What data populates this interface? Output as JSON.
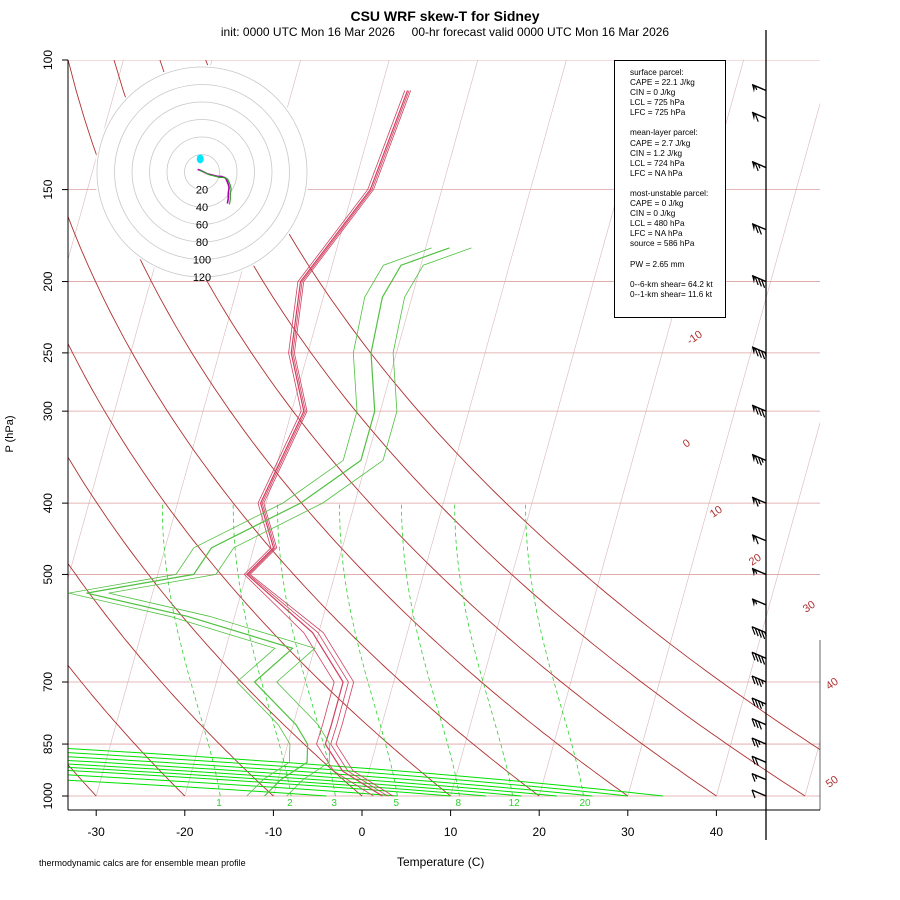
{
  "title": "CSU WRF skew-T for Sidney",
  "subtitle": "init: 0000 UTC Mon 16 Mar 2026     00-hr forecast valid 0000 UTC Mon 16 Mar 2026",
  "footnote": "thermodynamic calcs are for ensemble mean profile",
  "stats": {
    "surface": [
      "surface parcel:",
      "CAPE = 22.1  J/kg",
      "CIN = 0 J/kg",
      "LCL = 725 hPa",
      "LFC = 725 hPa"
    ],
    "mean_layer": [
      "mean-layer parcel:",
      "CAPE = 2.7 J/kg",
      "CIN = 1.2 J/kg",
      "LCL = 724 hPa",
      "LFC = NA hPa"
    ],
    "most_unstable": [
      "most-unstable parcel:",
      "CAPE = 0 J/kg",
      "CIN = 0 J/kg",
      "LCL = 480 hPa",
      "LFC = NA hPa",
      "source = 586 hPa"
    ],
    "pw": "PW =  2.65 mm",
    "shear": [
      "0--6-km shear= 64.2 kt",
      "0--1-km shear= 11.6 kt"
    ]
  },
  "colors": {
    "isotherm": "#b03030",
    "skewed_grid": "#d9b8b8",
    "isobar": "#dca0a0",
    "moist_adiabat": "#00e000",
    "mixing_ratio": "#30d030",
    "temperature": "#d04060",
    "dewpoint": "#50c040",
    "barb": "#000000",
    "hodo_ring": "#c8c8c8"
  },
  "chart_data": {
    "type": "skew-T log-P",
    "xlabel": "Temperature (C)",
    "ylabel": "P (hPa)",
    "x_ticks": [
      -30,
      -20,
      -10,
      0,
      10,
      20,
      30,
      40
    ],
    "y_ticks": [
      100,
      150,
      200,
      250,
      300,
      400,
      500,
      700,
      850,
      1000
    ],
    "xlim": [
      -33,
      52
    ],
    "ylim": [
      1000,
      100
    ],
    "isotherm_labels": [
      -10,
      0,
      10,
      20,
      30,
      40,
      50
    ],
    "mixing_ratio_labels": [
      1,
      2,
      3,
      5,
      8,
      12,
      20
    ],
    "hodograph_ring_labels": [
      20,
      40,
      60,
      80,
      100,
      120
    ],
    "temperature_profile": [
      [
        1000,
        2.3
      ],
      [
        925,
        -5
      ],
      [
        850,
        -10
      ],
      [
        800,
        -11.5
      ],
      [
        700,
        -15
      ],
      [
        600,
        -24
      ],
      [
        500,
        -38
      ],
      [
        460,
        -38
      ],
      [
        400,
        -44.5
      ],
      [
        300,
        -50
      ],
      [
        250,
        -58
      ],
      [
        200,
        -65
      ],
      [
        150,
        -67.5
      ],
      [
        110,
        -74.5
      ]
    ],
    "dewpoint_profile": [
      [
        1000,
        -11
      ],
      [
        950,
        -11
      ],
      [
        900,
        -10
      ],
      [
        850,
        -12
      ],
      [
        800,
        -15.5
      ],
      [
        700,
        -25
      ],
      [
        630,
        -24.5
      ],
      [
        570,
        -40
      ],
      [
        530,
        -54
      ],
      [
        500,
        -44
      ],
      [
        460,
        -45
      ],
      [
        400,
        -40
      ],
      [
        350,
        -38
      ],
      [
        300,
        -42
      ],
      [
        250,
        -49
      ],
      [
        210,
        -54
      ],
      [
        190,
        -55.5
      ],
      [
        180,
        -52
      ]
    ],
    "wind_barbs": [
      {
        "p": 1000,
        "speed_kt": 10,
        "dir_deg": 270
      },
      {
        "p": 950,
        "speed_kt": 15,
        "dir_deg": 280
      },
      {
        "p": 900,
        "speed_kt": 20,
        "dir_deg": 290
      },
      {
        "p": 850,
        "speed_kt": 25,
        "dir_deg": 290
      },
      {
        "p": 800,
        "speed_kt": 30,
        "dir_deg": 295
      },
      {
        "p": 750,
        "speed_kt": 35,
        "dir_deg": 295
      },
      {
        "p": 700,
        "speed_kt": 35,
        "dir_deg": 295
      },
      {
        "p": 650,
        "speed_kt": 40,
        "dir_deg": 300
      },
      {
        "p": 600,
        "speed_kt": 45,
        "dir_deg": 300
      },
      {
        "p": 550,
        "speed_kt": 55,
        "dir_deg": 300
      },
      {
        "p": 500,
        "speed_kt": 55,
        "dir_deg": 300
      },
      {
        "p": 450,
        "speed_kt": 60,
        "dir_deg": 295
      },
      {
        "p": 400,
        "speed_kt": 65,
        "dir_deg": 295
      },
      {
        "p": 350,
        "speed_kt": 75,
        "dir_deg": 290
      },
      {
        "p": 300,
        "speed_kt": 80,
        "dir_deg": 290
      },
      {
        "p": 250,
        "speed_kt": 85,
        "dir_deg": 290
      },
      {
        "p": 200,
        "speed_kt": 80,
        "dir_deg": 290
      },
      {
        "p": 170,
        "speed_kt": 70,
        "dir_deg": 295
      },
      {
        "p": 140,
        "speed_kt": 65,
        "dir_deg": 295
      },
      {
        "p": 120,
        "speed_kt": 60,
        "dir_deg": 300
      },
      {
        "p": 110,
        "speed_kt": 55,
        "dir_deg": 300
      }
    ],
    "hodograph_points": [
      [
        -5,
        3
      ],
      [
        -2,
        2
      ],
      [
        2,
        0
      ],
      [
        6,
        -2
      ],
      [
        10,
        -3
      ],
      [
        14,
        -4
      ],
      [
        18,
        -5
      ],
      [
        22,
        -5
      ],
      [
        25,
        -6
      ],
      [
        27,
        -7
      ],
      [
        28,
        -9
      ],
      [
        30,
        -14
      ],
      [
        31,
        -18
      ],
      [
        30,
        -24
      ],
      [
        30,
        -30
      ],
      [
        29,
        -36
      ]
    ],
    "storm_motion_marker": [
      -2,
      15
    ]
  }
}
